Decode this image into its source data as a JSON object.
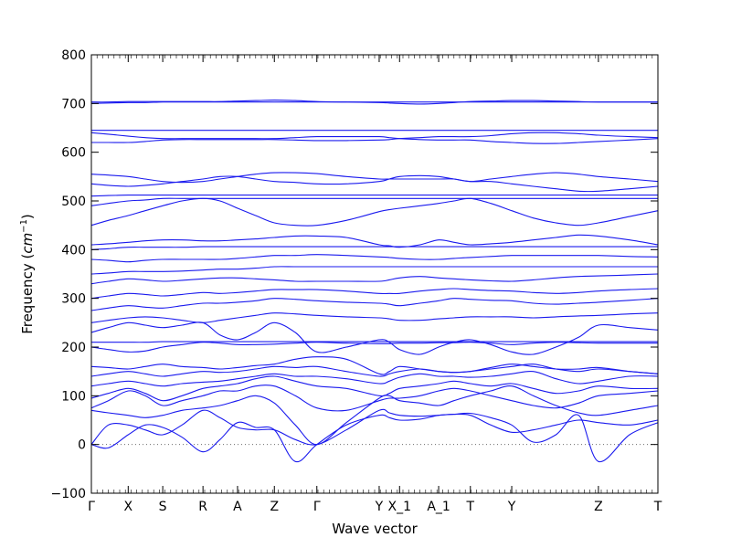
{
  "chart_data": {
    "type": "line",
    "xlabel": "Wave vector",
    "ylabel": "Frequency",
    "ylabel_unit": "cm",
    "ylabel_unit_exp": "−1",
    "ylim": [
      -100,
      800
    ],
    "yticks": [
      -100,
      0,
      100,
      200,
      300,
      400,
      500,
      600,
      700,
      800
    ],
    "xlim": [
      0,
      100
    ],
    "kpoints": [
      {
        "label": "Γ",
        "x": 0
      },
      {
        "label": "X",
        "x": 6.5
      },
      {
        "label": "S",
        "x": 12.6
      },
      {
        "label": "R",
        "x": 19.7
      },
      {
        "label": "A",
        "x": 25.8
      },
      {
        "label": "Z",
        "x": 32.3
      },
      {
        "label": "Γ",
        "x": 39.8
      },
      {
        "label": "Y",
        "x": 50.8
      },
      {
        "label": "X_1",
        "x": 54.4
      },
      {
        "label": "A_1",
        "x": 61.3
      },
      {
        "label": "T",
        "x": 66.9
      },
      {
        "label": "Y",
        "x": 74.2
      },
      {
        "label": "Z",
        "x": 89.5
      },
      {
        "label": "T",
        "x": 100
      }
    ],
    "zero_line": 0,
    "series_color": "#1a1aee",
    "band_x": [
      0,
      3,
      6.5,
      9.5,
      12.6,
      16,
      19.7,
      22.7,
      25.8,
      29,
      32.3,
      36,
      39.8,
      45,
      50.8,
      52.6,
      54.4,
      58,
      61.3,
      64,
      66.9,
      70.5,
      74.2,
      78,
      82,
      86,
      89.5,
      95,
      100
    ],
    "bands": [
      [
        0,
        -7,
        20,
        40,
        35,
        15,
        -15,
        10,
        45,
        35,
        30,
        -35,
        0,
        40,
        60,
        55,
        50,
        52,
        60,
        62,
        64,
        55,
        40,
        5,
        20,
        60,
        -35,
        20,
        45
      ],
      [
        0,
        40,
        40,
        30,
        20,
        40,
        70,
        55,
        35,
        30,
        30,
        10,
        0,
        30,
        70,
        65,
        60,
        58,
        60,
        62,
        60,
        40,
        25,
        30,
        40,
        50,
        45,
        40,
        50
      ],
      [
        70,
        65,
        60,
        55,
        60,
        70,
        75,
        80,
        90,
        100,
        85,
        40,
        0,
        45,
        95,
        100,
        90,
        85,
        80,
        90,
        100,
        110,
        120,
        100,
        80,
        65,
        60,
        70,
        80
      ],
      [
        75,
        90,
        110,
        100,
        80,
        90,
        100,
        110,
        110,
        120,
        120,
        100,
        75,
        70,
        90,
        95,
        95,
        100,
        110,
        115,
        110,
        100,
        90,
        80,
        75,
        85,
        100,
        105,
        110
      ],
      [
        95,
        105,
        115,
        105,
        90,
        100,
        115,
        120,
        125,
        135,
        140,
        130,
        120,
        115,
        100,
        105,
        115,
        120,
        125,
        130,
        125,
        120,
        125,
        115,
        105,
        110,
        120,
        115,
        115
      ],
      [
        120,
        125,
        130,
        125,
        120,
        125,
        128,
        130,
        135,
        140,
        145,
        140,
        140,
        135,
        125,
        130,
        138,
        145,
        140,
        140,
        138,
        140,
        145,
        150,
        135,
        125,
        130,
        140,
        140
      ],
      [
        140,
        145,
        150,
        145,
        140,
        145,
        150,
        148,
        150,
        155,
        160,
        158,
        160,
        150,
        140,
        145,
        150,
        155,
        150,
        148,
        150,
        155,
        160,
        165,
        155,
        150,
        155,
        150,
        145
      ],
      [
        160,
        158,
        155,
        160,
        165,
        160,
        158,
        155,
        158,
        162,
        165,
        175,
        180,
        175,
        145,
        150,
        160,
        155,
        150,
        148,
        150,
        158,
        165,
        160,
        155,
        155,
        158,
        150,
        145
      ],
      [
        200,
        195,
        190,
        192,
        200,
        205,
        210,
        208,
        205,
        205,
        206,
        208,
        210,
        208,
        207,
        207,
        208,
        208,
        209,
        209,
        210,
        208,
        205,
        208,
        210,
        209,
        208,
        208,
        208
      ],
      [
        210,
        210,
        210,
        210,
        211,
        211,
        211,
        211,
        211,
        211,
        211,
        211,
        211,
        211,
        211,
        211,
        211,
        211,
        211,
        211,
        211,
        211,
        211,
        211,
        211,
        211,
        211,
        211,
        211
      ],
      [
        230,
        240,
        250,
        245,
        240,
        245,
        250,
        225,
        215,
        230,
        250,
        230,
        190,
        200,
        215,
        210,
        195,
        185,
        200,
        210,
        215,
        205,
        190,
        185,
        200,
        220,
        245,
        240,
        235
      ],
      [
        250,
        255,
        260,
        262,
        260,
        255,
        250,
        255,
        260,
        265,
        270,
        268,
        265,
        262,
        260,
        258,
        255,
        255,
        258,
        260,
        262,
        262,
        262,
        260,
        262,
        264,
        265,
        268,
        270
      ],
      [
        275,
        280,
        285,
        282,
        280,
        285,
        290,
        290,
        292,
        295,
        300,
        298,
        295,
        292,
        290,
        288,
        285,
        290,
        295,
        300,
        298,
        296,
        295,
        290,
        288,
        290,
        292,
        296,
        300
      ],
      [
        300,
        305,
        310,
        308,
        305,
        308,
        312,
        310,
        312,
        315,
        318,
        318,
        318,
        315,
        310,
        310,
        310,
        315,
        318,
        320,
        318,
        316,
        315,
        312,
        310,
        312,
        315,
        318,
        320
      ],
      [
        330,
        335,
        340,
        338,
        335,
        337,
        340,
        342,
        342,
        340,
        338,
        335,
        335,
        335,
        335,
        338,
        342,
        345,
        342,
        340,
        338,
        336,
        335,
        338,
        342,
        345,
        346,
        348,
        350
      ],
      [
        350,
        352,
        355,
        355,
        355,
        356,
        358,
        360,
        360,
        362,
        365,
        365,
        365,
        365,
        365,
        365,
        365,
        365,
        365,
        365,
        365,
        365,
        365,
        365,
        365,
        365,
        365,
        365,
        365
      ],
      [
        380,
        378,
        375,
        378,
        380,
        380,
        380,
        380,
        382,
        385,
        388,
        388,
        390,
        388,
        385,
        384,
        382,
        380,
        380,
        382,
        384,
        386,
        388,
        388,
        388,
        388,
        388,
        386,
        385
      ],
      [
        400,
        402,
        405,
        405,
        405,
        405,
        406,
        406,
        406,
        406,
        406,
        406,
        406,
        406,
        406,
        406,
        406,
        406,
        406,
        406,
        406,
        406,
        406,
        406,
        406,
        406,
        406,
        406,
        406
      ],
      [
        410,
        412,
        415,
        418,
        420,
        420,
        418,
        418,
        420,
        422,
        425,
        428,
        428,
        425,
        410,
        408,
        405,
        410,
        420,
        415,
        410,
        412,
        415,
        420,
        425,
        430,
        428,
        420,
        410
      ],
      [
        450,
        460,
        470,
        480,
        490,
        500,
        505,
        500,
        485,
        470,
        455,
        450,
        450,
        460,
        478,
        482,
        485,
        490,
        495,
        500,
        505,
        495,
        480,
        465,
        455,
        450,
        455,
        468,
        480
      ],
      [
        490,
        495,
        500,
        502,
        505,
        505,
        505,
        505,
        505,
        505,
        505,
        505,
        505,
        505,
        505,
        505,
        505,
        505,
        505,
        505,
        505,
        505,
        505,
        505,
        505,
        505,
        505,
        505,
        505
      ],
      [
        510,
        511,
        512,
        512,
        512,
        512,
        512,
        512,
        512,
        512,
        512,
        512,
        512,
        512,
        512,
        512,
        512,
        512,
        512,
        512,
        512,
        512,
        512,
        512,
        512,
        512,
        512,
        512,
        512
      ],
      [
        535,
        532,
        530,
        532,
        535,
        540,
        545,
        550,
        550,
        545,
        540,
        538,
        535,
        535,
        540,
        545,
        550,
        552,
        550,
        545,
        540,
        540,
        535,
        530,
        525,
        520,
        520,
        525,
        530
      ],
      [
        555,
        553,
        550,
        545,
        540,
        538,
        540,
        545,
        550,
        555,
        558,
        558,
        556,
        550,
        545,
        545,
        545,
        545,
        545,
        545,
        540,
        545,
        550,
        555,
        558,
        555,
        550,
        545,
        540
      ],
      [
        620,
        620,
        620,
        622,
        625,
        626,
        626,
        626,
        626,
        626,
        626,
        625,
        624,
        624,
        625,
        626,
        628,
        630,
        632,
        632,
        632,
        634,
        638,
        640,
        640,
        638,
        635,
        632,
        630
      ],
      [
        640,
        637,
        633,
        630,
        628,
        628,
        628,
        628,
        628,
        628,
        628,
        630,
        632,
        632,
        632,
        630,
        628,
        626,
        625,
        625,
        625,
        622,
        620,
        618,
        618,
        620,
        622,
        625,
        628
      ],
      [
        645,
        645,
        645,
        645,
        645,
        645,
        645,
        645,
        645,
        645,
        645,
        645,
        645,
        645,
        645,
        645,
        645,
        645,
        645,
        645,
        645,
        645,
        645,
        645,
        645,
        645,
        645,
        645,
        645
      ],
      [
        700,
        701,
        702,
        702,
        703,
        703,
        703,
        703,
        703,
        703,
        703,
        703,
        703,
        703,
        703,
        703,
        703,
        703,
        703,
        703,
        703,
        703,
        703,
        703,
        703,
        703,
        703,
        703,
        703
      ],
      [
        703,
        703,
        704,
        704,
        704,
        704,
        704,
        704,
        705,
        706,
        707,
        706,
        704,
        703,
        702,
        701,
        700,
        699,
        700,
        702,
        704,
        705,
        706,
        706,
        705,
        704,
        703,
        703,
        703
      ]
    ]
  }
}
